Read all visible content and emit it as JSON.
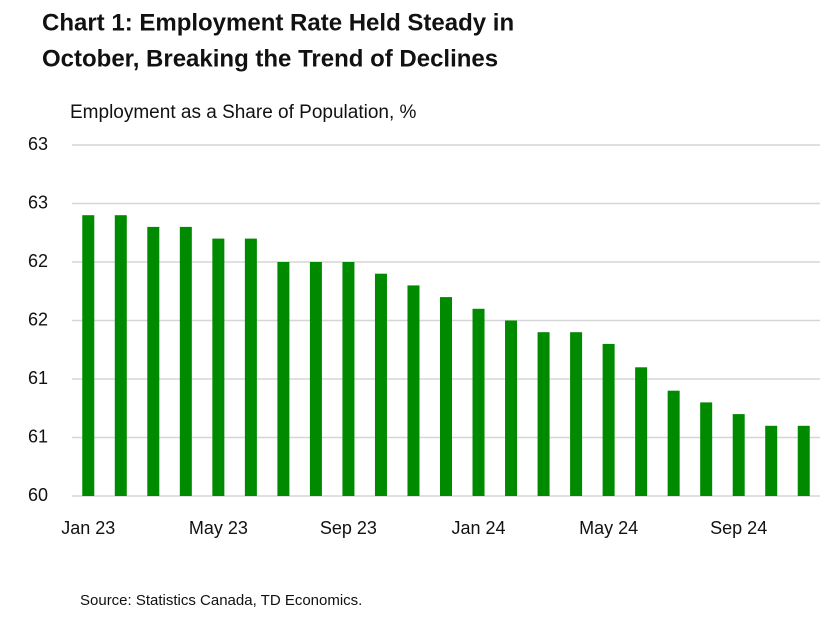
{
  "chart_data": {
    "type": "bar",
    "title": [
      "Chart 1: Employment Rate Held Steady in",
      "October, Breaking the Trend of Declines"
    ],
    "subtitle": "Employment as a Share of Population, %",
    "source": "Source: Statistics Canada, TD Economics.",
    "categories": [
      "Jan 23",
      null,
      null,
      null,
      "May 23",
      null,
      null,
      null,
      "Sep 23",
      null,
      null,
      null,
      "Jan 24",
      null,
      null,
      null,
      "May 24",
      null,
      null,
      null,
      "Sep 24",
      null,
      null
    ],
    "values": [
      62.4,
      62.4,
      62.3,
      62.3,
      62.2,
      62.2,
      62.0,
      62.0,
      62.0,
      61.9,
      61.8,
      61.7,
      61.6,
      61.5,
      61.4,
      61.4,
      61.3,
      61.1,
      60.9,
      60.8,
      60.7,
      60.6,
      60.6
    ],
    "color": "#008a00",
    "ylim": [
      60,
      63
    ],
    "yticks": [
      60,
      {
        "value": 60.5,
        "label": "61"
      },
      {
        "value": 61,
        "label": "61"
      },
      {
        "value": 61.5,
        "label": "62"
      },
      {
        "value": 62,
        "label": "62"
      },
      {
        "value": 62.5,
        "label": "63"
      },
      {
        "value": 63,
        "label": "63"
      }
    ],
    "grid": true
  }
}
